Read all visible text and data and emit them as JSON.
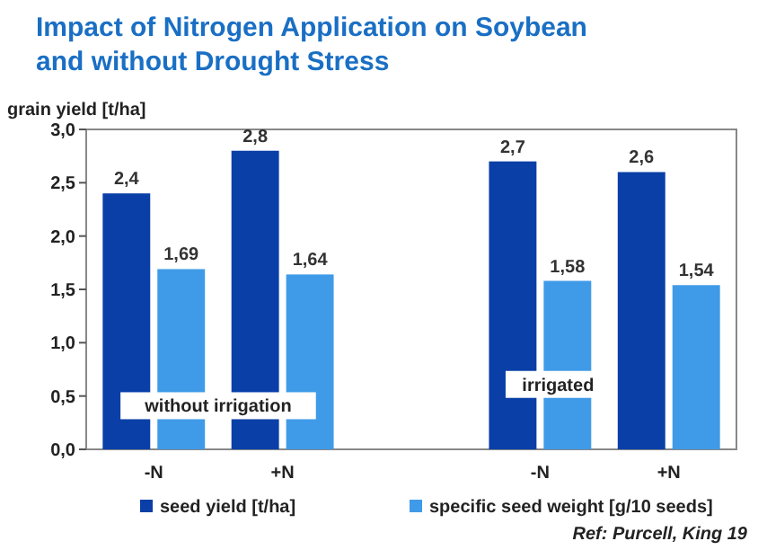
{
  "chart_data": {
    "type": "bar",
    "title": "Impact of Nitrogen Application on Soybean",
    "subtitle": "and without Drought Stress",
    "ylabel": "grain yield [t/ha]",
    "categories": [
      "-N",
      "+N",
      null,
      "-N",
      "+N"
    ],
    "series": [
      {
        "name": "seed yield [t/ha]",
        "color": "#0a3fa8",
        "values": [
          2.4,
          2.8,
          null,
          2.7,
          2.6
        ],
        "value_labels": [
          "2,4",
          "2,8",
          null,
          "2,7",
          "2,6"
        ]
      },
      {
        "name": "specific seed weight [g/10 seeds]",
        "color": "#3f9be8",
        "values": [
          1.69,
          1.64,
          null,
          1.58,
          1.54
        ],
        "value_labels": [
          "1,69",
          "1,64",
          null,
          "1,58",
          "1,54"
        ]
      }
    ],
    "ylim": [
      0,
      3
    ],
    "yticks": [
      {
        "value": 0,
        "label": "0,0"
      },
      {
        "value": 0.5,
        "label": "0,5"
      },
      {
        "value": 1,
        "label": "1,0"
      },
      {
        "value": 1.5,
        "label": "1,5"
      },
      {
        "value": 2,
        "label": "2,0"
      },
      {
        "value": 2.5,
        "label": "2,5"
      },
      {
        "value": 3,
        "label": "3,0"
      }
    ],
    "legend": "bottom",
    "annotations": [
      "without irrigation",
      "irrigated",
      "Ref: Purcell, King 19"
    ]
  }
}
